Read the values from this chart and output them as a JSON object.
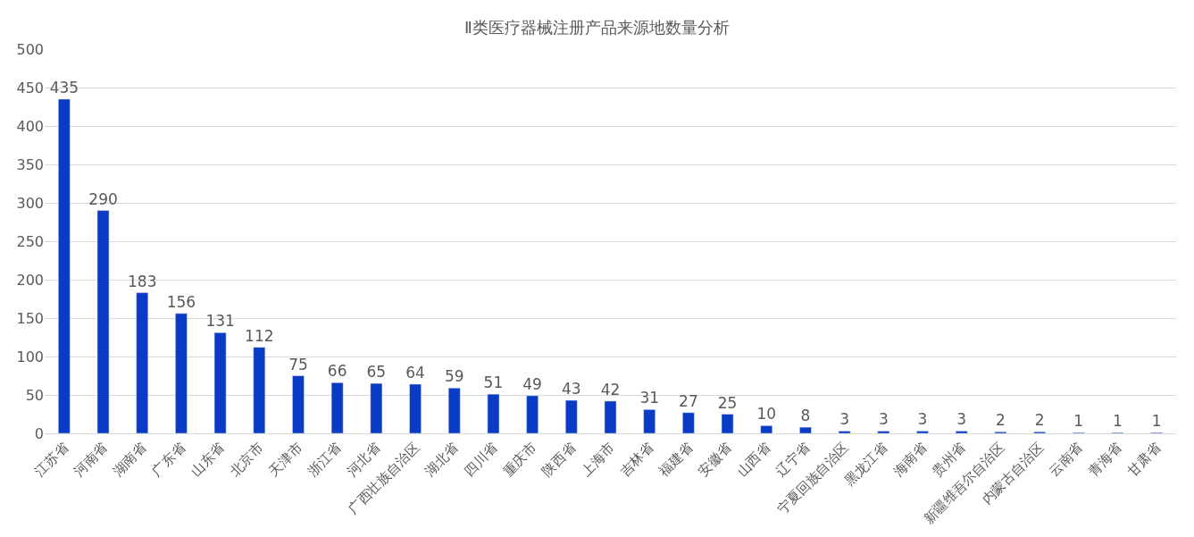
{
  "chart_data": {
    "type": "bar",
    "title": "Ⅱ类医疗器械注册产品来源地数量分析",
    "categories": [
      "江苏省",
      "河南省",
      "湖南省",
      "广东省",
      "山东省",
      "北京市",
      "天津市",
      "浙江省",
      "河北省",
      "广西壮族自治区",
      "湖北省",
      "四川省",
      "重庆市",
      "陕西省",
      "上海市",
      "吉林省",
      "福建省",
      "安徽省",
      "山西省",
      "辽宁省",
      "宁夏回族自治区",
      "黑龙江省",
      "海南省",
      "贵州省",
      "新疆维吾尔自治区",
      "内蒙古自治区",
      "云南省",
      "青海省",
      "甘肃省"
    ],
    "values": [
      435,
      290,
      183,
      156,
      131,
      112,
      75,
      66,
      65,
      64,
      59,
      51,
      49,
      43,
      42,
      31,
      27,
      25,
      10,
      8,
      3,
      3,
      3,
      3,
      2,
      2,
      1,
      1,
      1
    ],
    "color": "#0a3bc4",
    "ylim": [
      0,
      500
    ],
    "yticks": [
      0,
      50,
      100,
      150,
      200,
      250,
      300,
      350,
      400,
      450,
      500
    ],
    "grid": "y",
    "data_labels": true
  }
}
